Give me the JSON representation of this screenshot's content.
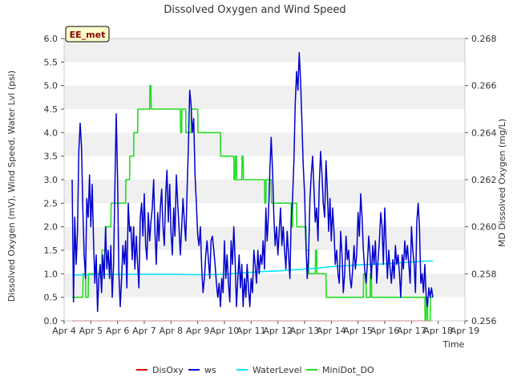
{
  "chart_data": {
    "type": "line",
    "title": "Dissolved Oxygen and Wind Speed",
    "badge": "EE_met",
    "xlabel": "Time",
    "ylabel_left": "Dissolved Oxygen (mV), Wind Speed, Water Lvl (psi)",
    "ylabel_right": "MD Dissolved Oxygen (mg/L)",
    "x_range": [
      4,
      19
    ],
    "x_ticks": [
      4,
      5,
      6,
      7,
      8,
      9,
      10,
      11,
      12,
      13,
      14,
      15,
      16,
      17,
      18,
      19
    ],
    "x_tick_labels": [
      "Apr 4",
      "Apr 5",
      "Apr 6",
      "Apr 7",
      "Apr 8",
      "Apr 9",
      "Apr 10",
      "Apr 11",
      "Apr 12",
      "Apr 13",
      "Apr 14",
      "Apr 15",
      "Apr 16",
      "Apr 17",
      "Apr 18",
      "Apr 19"
    ],
    "y_left_range": [
      0,
      6
    ],
    "y_left_ticks": [
      0,
      0.5,
      1,
      1.5,
      2,
      2.5,
      3,
      3.5,
      4,
      4.5,
      5,
      5.5,
      6
    ],
    "y_left_tick_labels": [
      "0.0",
      "0.5",
      "1.0",
      "1.5",
      "2.0",
      "2.5",
      "3.0",
      "3.5",
      "4.0",
      "4.5",
      "5.0",
      "5.5",
      "6.0"
    ],
    "y_right_range": [
      0.256,
      0.268
    ],
    "y_right_ticks": [
      0.256,
      0.258,
      0.26,
      0.262,
      0.264,
      0.266,
      0.268
    ],
    "y_right_tick_labels": [
      "0.256",
      "0.258",
      "0.260",
      "0.262",
      "0.264",
      "0.266",
      "0.268"
    ],
    "grid": "horizontal alternating bands",
    "legend_position": "bottom",
    "series": [
      {
        "name": "DisOxy",
        "color": "#dd0000",
        "axis": "left",
        "x": [
          4.3,
          17.8
        ],
        "y": [
          0.0,
          0.0
        ]
      },
      {
        "name": "ws",
        "color": "#0000cc",
        "axis": "left",
        "x": [
          4.3,
          4.35,
          4.4,
          4.45,
          4.5,
          4.55,
          4.6,
          4.65,
          4.7,
          4.75,
          4.8,
          4.85,
          4.9,
          4.95,
          5.0,
          5.05,
          5.1,
          5.15,
          5.2,
          5.25,
          5.3,
          5.35,
          5.4,
          5.45,
          5.5,
          5.55,
          5.6,
          5.65,
          5.7,
          5.75,
          5.8,
          5.85,
          5.9,
          5.95,
          6.0,
          6.05,
          6.1,
          6.15,
          6.2,
          6.25,
          6.3,
          6.35,
          6.4,
          6.45,
          6.5,
          6.55,
          6.6,
          6.65,
          6.7,
          6.75,
          6.8,
          6.85,
          6.9,
          6.95,
          7.0,
          7.05,
          7.1,
          7.15,
          7.2,
          7.25,
          7.3,
          7.35,
          7.4,
          7.45,
          7.5,
          7.55,
          7.6,
          7.65,
          7.7,
          7.75,
          7.8,
          7.85,
          7.9,
          7.95,
          8.0,
          8.05,
          8.1,
          8.15,
          8.2,
          8.25,
          8.3,
          8.35,
          8.4,
          8.45,
          8.5,
          8.55,
          8.6,
          8.65,
          8.7,
          8.75,
          8.8,
          8.85,
          8.9,
          8.95,
          9.0,
          9.05,
          9.1,
          9.15,
          9.2,
          9.25,
          9.3,
          9.35,
          9.4,
          9.45,
          9.5,
          9.55,
          9.6,
          9.65,
          9.7,
          9.75,
          9.8,
          9.85,
          9.9,
          9.95,
          10.0,
          10.05,
          10.1,
          10.15,
          10.2,
          10.25,
          10.3,
          10.35,
          10.4,
          10.45,
          10.5,
          10.55,
          10.6,
          10.65,
          10.7,
          10.75,
          10.8,
          10.85,
          10.9,
          10.95,
          11.0,
          11.05,
          11.1,
          11.15,
          11.2,
          11.25,
          11.3,
          11.35,
          11.4,
          11.45,
          11.5,
          11.55,
          11.6,
          11.65,
          11.7,
          11.75,
          11.8,
          11.85,
          11.9,
          11.95,
          12.0,
          12.05,
          12.1,
          12.15,
          12.2,
          12.25,
          12.3,
          12.35,
          12.4,
          12.45,
          12.5,
          12.55,
          12.6,
          12.65,
          12.7,
          12.75,
          12.8,
          12.85,
          12.9,
          12.95,
          13.0,
          13.05,
          13.1,
          13.15,
          13.2,
          13.25,
          13.3,
          13.35,
          13.4,
          13.45,
          13.5,
          13.55,
          13.6,
          13.65,
          13.7,
          13.75,
          13.8,
          13.85,
          13.9,
          13.95,
          14.0,
          14.05,
          14.1,
          14.15,
          14.2,
          14.25,
          14.3,
          14.35,
          14.4,
          14.45,
          14.5,
          14.55,
          14.6,
          14.65,
          14.7,
          14.75,
          14.8,
          14.85,
          14.9,
          14.95,
          15.0,
          15.05,
          15.1,
          15.15,
          15.2,
          15.25,
          15.3,
          15.35,
          15.4,
          15.45,
          15.5,
          15.55,
          15.6,
          15.65,
          15.7,
          15.75,
          15.8,
          15.85,
          15.9,
          15.95,
          16.0,
          16.05,
          16.1,
          16.15,
          16.2,
          16.25,
          16.3,
          16.35,
          16.4,
          16.45,
          16.5,
          16.55,
          16.6,
          16.65,
          16.7,
          16.75,
          16.8,
          16.85,
          16.9,
          16.95,
          17.0,
          17.05,
          17.1,
          17.15,
          17.2,
          17.25,
          17.3,
          17.35,
          17.4,
          17.45,
          17.5,
          17.55,
          17.6,
          17.65,
          17.7,
          17.75,
          17.8
        ],
        "y": [
          3.0,
          0.4,
          2.2,
          1.2,
          1.9,
          3.6,
          4.2,
          3.7,
          2.4,
          1.4,
          0.9,
          2.6,
          2.2,
          3.1,
          2.0,
          2.9,
          1.7,
          0.8,
          1.4,
          0.2,
          0.9,
          1.2,
          0.6,
          1.4,
          0.9,
          2.0,
          1.1,
          1.5,
          0.9,
          1.6,
          0.5,
          1.2,
          2.8,
          4.4,
          3.0,
          1.0,
          0.3,
          0.9,
          1.6,
          1.2,
          1.7,
          0.7,
          2.5,
          1.9,
          2.0,
          1.3,
          2.0,
          1.1,
          1.8,
          1.2,
          0.7,
          2.2,
          2.5,
          1.8,
          2.7,
          1.6,
          1.3,
          2.3,
          1.7,
          2.1,
          2.4,
          3.0,
          1.9,
          1.2,
          2.3,
          1.7,
          2.4,
          2.8,
          2.0,
          1.6,
          2.7,
          3.2,
          2.1,
          2.9,
          1.9,
          1.4,
          2.4,
          1.8,
          3.1,
          2.5,
          2.0,
          1.4,
          2.0,
          2.6,
          2.1,
          1.7,
          2.7,
          3.7,
          4.9,
          4.6,
          4.0,
          4.3,
          3.1,
          2.5,
          1.8,
          1.6,
          2.0,
          1.1,
          0.6,
          0.9,
          1.4,
          1.7,
          1.3,
          0.9,
          1.7,
          1.8,
          1.5,
          1.2,
          0.8,
          0.5,
          0.8,
          0.3,
          0.9,
          0.6,
          1.7,
          0.9,
          1.4,
          0.8,
          0.4,
          1.7,
          1.2,
          2.0,
          1.3,
          0.3,
          0.9,
          1.4,
          0.7,
          1.2,
          0.3,
          0.9,
          0.5,
          1.2,
          0.7,
          0.3,
          0.9,
          0.6,
          1.5,
          1.2,
          0.8,
          1.5,
          1.0,
          1.4,
          1.2,
          1.7,
          1.1,
          2.4,
          1.7,
          2.3,
          3.2,
          3.9,
          3.2,
          2.2,
          1.6,
          2.0,
          1.4,
          1.9,
          2.4,
          1.6,
          2.0,
          1.5,
          1.1,
          1.9,
          1.4,
          0.9,
          2.2,
          2.6,
          3.4,
          4.6,
          5.3,
          4.9,
          5.7,
          5.1,
          4.2,
          3.3,
          2.7,
          1.6,
          0.9,
          1.4,
          2.6,
          3.1,
          3.5,
          2.8,
          2.1,
          2.4,
          1.7,
          2.9,
          3.6,
          3.1,
          2.5,
          2.2,
          3.4,
          2.8,
          1.9,
          2.6,
          1.7,
          2.4,
          1.9,
          1.2,
          1.5,
          1.0,
          0.8,
          1.9,
          1.4,
          0.6,
          1.0,
          1.8,
          1.3,
          1.5,
          0.9,
          0.7,
          1.1,
          1.6,
          1.1,
          1.4,
          2.3,
          1.8,
          2.7,
          2.2,
          1.5,
          1.1,
          0.8,
          1.2,
          1.8,
          1.4,
          0.9,
          1.6,
          1.2,
          1.7,
          0.8,
          1.3,
          1.7,
          2.3,
          2.0,
          1.2,
          2.4,
          1.6,
          0.9,
          1.5,
          1.1,
          0.8,
          1.3,
          0.9,
          1.6,
          1.2,
          1.4,
          1.0,
          0.5,
          1.4,
          1.1,
          1.7,
          1.3,
          1.6,
          1.2,
          0.8,
          2.0,
          1.5,
          1.2,
          0.6,
          2.1,
          2.5,
          2.0,
          0.8,
          1.0,
          0.6,
          1.2,
          0.5,
          0.3,
          0.7,
          0.5,
          0.7,
          0.5
        ]
      },
      {
        "name": "WaterLevel",
        "color": "#00e5ff",
        "axis": "left",
        "x": [
          4.3,
          5.0,
          6.0,
          7.0,
          8.0,
          9.0,
          10.0,
          10.5,
          11.0,
          11.5,
          12.0,
          12.5,
          13.0,
          13.5,
          14.0,
          14.5,
          15.0,
          15.5,
          16.0,
          16.5,
          17.0,
          17.5,
          17.8
        ],
        "y": [
          0.97,
          0.98,
          0.99,
          0.99,
          0.99,
          0.98,
          0.99,
          1.01,
          1.03,
          1.05,
          1.06,
          1.08,
          1.1,
          1.12,
          1.15,
          1.17,
          1.19,
          1.2,
          1.21,
          1.23,
          1.25,
          1.27,
          1.27
        ]
      },
      {
        "name": "MiniDot_DO",
        "color": "#22dd22",
        "axis": "left",
        "x": [
          4.3,
          4.7,
          4.71,
          4.8,
          4.81,
          4.9,
          4.91,
          5.0,
          5.4,
          5.41,
          5.55,
          5.56,
          5.75,
          5.76,
          5.95,
          5.96,
          6.3,
          6.31,
          6.45,
          6.46,
          6.6,
          6.61,
          6.75,
          6.76,
          7.2,
          7.21,
          7.25,
          7.26,
          8.35,
          8.36,
          8.4,
          8.41,
          8.55,
          8.56,
          8.75,
          8.76,
          9.0,
          9.01,
          9.85,
          9.86,
          10.35,
          10.36,
          10.4,
          10.41,
          10.45,
          10.46,
          10.65,
          10.66,
          10.7,
          10.71,
          11.5,
          11.51,
          11.55,
          11.56,
          11.75,
          11.76,
          12.5,
          12.51,
          12.55,
          12.56,
          12.7,
          12.71,
          13.05,
          13.06,
          13.15,
          13.16,
          13.4,
          13.41,
          13.45,
          13.46,
          13.8,
          13.81,
          13.9,
          13.91,
          15.2,
          15.21,
          15.3,
          15.31,
          15.45,
          15.46,
          15.5,
          15.51,
          16.4,
          16.41,
          17.5,
          17.51,
          17.55,
          17.56,
          17.6,
          17.61,
          17.7,
          17.71,
          17.8
        ],
        "y": [
          0.5,
          0.5,
          1.0,
          1.0,
          0.5,
          0.5,
          1.0,
          1.0,
          1.0,
          1.5,
          1.5,
          2.0,
          2.0,
          2.5,
          2.5,
          2.5,
          2.5,
          3.0,
          3.0,
          3.5,
          3.5,
          4.0,
          4.0,
          4.5,
          4.5,
          5.0,
          5.0,
          4.5,
          4.5,
          4.0,
          4.0,
          4.5,
          4.5,
          4.0,
          4.0,
          4.5,
          4.5,
          4.0,
          4.0,
          3.5,
          3.5,
          3.0,
          3.0,
          3.5,
          3.5,
          3.0,
          3.0,
          3.5,
          3.5,
          3.0,
          3.0,
          2.5,
          2.5,
          3.0,
          3.0,
          2.5,
          2.5,
          2.0,
          2.0,
          2.5,
          2.5,
          2.0,
          2.0,
          1.5,
          1.5,
          1.0,
          1.0,
          1.5,
          1.5,
          1.0,
          1.0,
          0.5,
          0.5,
          0.5,
          0.5,
          1.0,
          1.0,
          0.5,
          0.5,
          1.0,
          1.0,
          0.5,
          0.5,
          0.5,
          0.5,
          0.0,
          0.0,
          0.5,
          0.5,
          0.0,
          0.0,
          0.5,
          0.5
        ]
      }
    ]
  }
}
